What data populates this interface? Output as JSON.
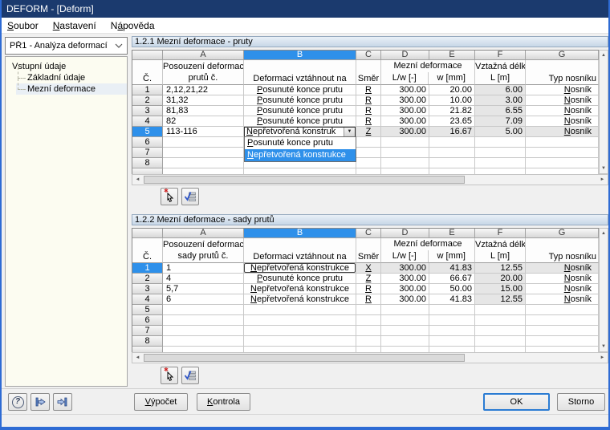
{
  "titlebar": {
    "title": "DEFORM - [Deform]"
  },
  "menu": {
    "items": [
      "Soubor",
      "Nastavení",
      "Nápověda"
    ]
  },
  "sidebar": {
    "case": "PŘ1 - Analýza deformací",
    "tree_root": "Vstupní údaje",
    "tree_children": [
      "Základní údaje",
      "Mezní deformace"
    ]
  },
  "icons": {
    "combo_arrow": "▼",
    "scroll_up": "▲",
    "scroll_down": "▼",
    "scroll_left": "◄",
    "scroll_right": "►",
    "pick_star": "✱",
    "help_q": "?"
  },
  "t1": {
    "title": "1.2.1 Mezní deformace - pruty",
    "letters": [
      "A",
      "B",
      "C",
      "D",
      "E",
      "F",
      "G"
    ],
    "h": {
      "num": "Č.",
      "a1": "Posouzení deformace",
      "a2": "prutů č.",
      "b": "Deformaci vztáhnout na",
      "c": "Směr",
      "de": "Mezní deformace",
      "d": "L/w [-]",
      "e": "w [mm]",
      "f1": "Vztažná délka",
      "f2": "L [m]",
      "g": "Typ nosníku"
    },
    "rows": [
      {
        "n": "1",
        "a": "2,12,21,22",
        "b": "Posunuté konce prutu",
        "c": "R",
        "d": "300.00",
        "e": "20.00",
        "f": "6.00",
        "g": "Nosník"
      },
      {
        "n": "2",
        "a": "31,32",
        "b": "Posunuté konce prutu",
        "c": "R",
        "d": "300.00",
        "e": "10.00",
        "f": "3.00",
        "g": "Nosník"
      },
      {
        "n": "3",
        "a": "81,83",
        "b": "Posunuté konce prutu",
        "c": "R",
        "d": "300.00",
        "e": "21.82",
        "f": "6.55",
        "g": "Nosník"
      },
      {
        "n": "4",
        "a": "82",
        "b": "Posunuté konce prutu",
        "c": "R",
        "d": "300.00",
        "e": "23.65",
        "f": "7.09",
        "g": "Nosník"
      },
      {
        "n": "5",
        "a": "113-116",
        "c": "Z",
        "d": "300.00",
        "e": "16.67",
        "f": "5.00",
        "g": "Nosník"
      },
      {
        "n": "6"
      },
      {
        "n": "7"
      },
      {
        "n": "8"
      }
    ],
    "combo": {
      "value": "Nepřetvořená konstruk",
      "options": [
        "Posunuté konce prutu",
        "Nepřetvořená konstrukce"
      ],
      "selected": "Nepřetvořená konstrukce"
    }
  },
  "t2": {
    "title": "1.2.2 Mezní deformace - sady prutů",
    "letters": [
      "A",
      "B",
      "C",
      "D",
      "E",
      "F",
      "G"
    ],
    "h": {
      "num": "Č.",
      "a1": "Posouzení deformace",
      "a2": "sady prutů č.",
      "b": "Deformaci vztáhnout na",
      "c": "Směr",
      "de": "Mezní deformace",
      "d": "L/w [-]",
      "e": "w [mm]",
      "f1": "Vztažná délka",
      "f2": "L [m]",
      "g": "Typ nosníku"
    },
    "rows": [
      {
        "n": "1",
        "a": "1",
        "b": "Nepřetvořená konstrukce",
        "c": "X",
        "d": "300.00",
        "e": "41.83",
        "f": "12.55",
        "g": "Nosník"
      },
      {
        "n": "2",
        "a": "4",
        "b": "Posunuté konce prutu",
        "c": "Z",
        "d": "300.00",
        "e": "66.67",
        "f": "20.00",
        "g": "Nosník"
      },
      {
        "n": "3",
        "a": "5,7",
        "b": "Nepřetvořená konstrukce",
        "c": "R",
        "d": "300.00",
        "e": "50.00",
        "f": "15.00",
        "g": "Nosník"
      },
      {
        "n": "4",
        "a": "6",
        "b": "Nepřetvořená konstrukce",
        "c": "R",
        "d": "300.00",
        "e": "41.83",
        "f": "12.55",
        "g": "Nosník"
      },
      {
        "n": "5"
      },
      {
        "n": "6"
      },
      {
        "n": "7"
      },
      {
        "n": "8"
      }
    ]
  },
  "footer": {
    "calc": "Výpočet",
    "check": "Kontrola",
    "ok": "OK",
    "cancel": "Storno"
  }
}
